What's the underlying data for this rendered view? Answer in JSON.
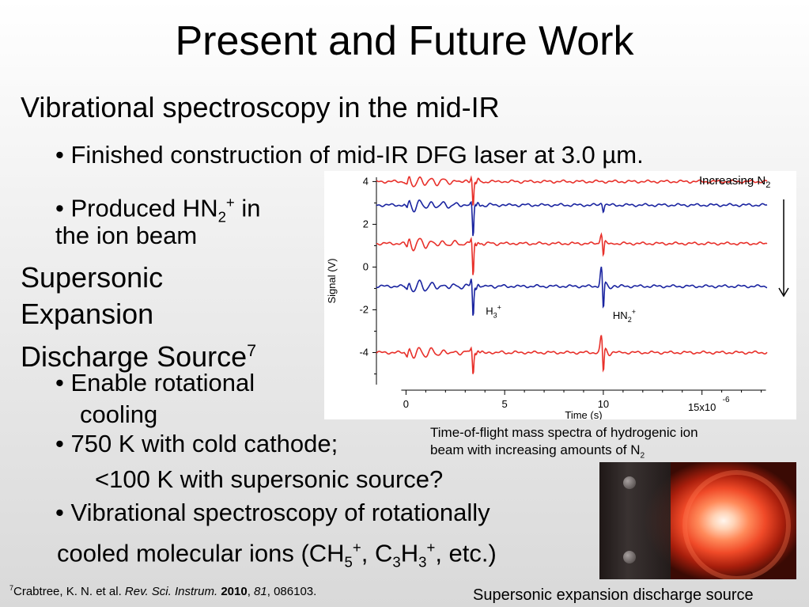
{
  "slide": {
    "title": "Present and Future Work",
    "section1": "Vibrational spectroscopy in the mid-IR",
    "bullet_laser": "Finished construction of mid-IR DFG laser at 3.0 µm.",
    "bullet_produced_pre": "Produced HN",
    "bullet_produced_sub": "2",
    "bullet_produced_sup": "+",
    "bullet_produced_post": " in",
    "bullet_produced_line2": "the ion beam",
    "section2_line1": "Supersonic",
    "section2_line2": "Expansion",
    "section2_line3": "Discharge Source",
    "section2_sup": "7",
    "bullet_enable_line1": "Enable rotational",
    "bullet_enable_line2": "cooling",
    "bullet_750_line1": "750 K with cold cathode;",
    "bullet_750_line2": "<100 K with supersonic source?",
    "bullet_vib_line1": "Vibrational spectroscopy of rotationally",
    "bullet_vib_line2_a": "cooled molecular ions (CH",
    "bullet_vib_line2_b": "5",
    "bullet_vib_line2_c": "+",
    "bullet_vib_line2_d": ", C",
    "bullet_vib_line2_e": "3",
    "bullet_vib_line2_f": "H",
    "bullet_vib_line2_g": "3",
    "bullet_vib_line2_h": "+",
    "bullet_vib_line2_i": ", etc.)",
    "bullet_char": "•"
  },
  "caption": {
    "line1": "Time-of-flight mass spectra of hydrogenic ion",
    "line2_pre": "beam with increasing amounts of N",
    "line2_sub": "2"
  },
  "footnote": {
    "sup": "7",
    "authors": "Crabtree, K. N. et al. ",
    "journal": "Rev. Sci. Instrum.",
    "year": "2010",
    "comma": ", ",
    "volume": "81",
    "pages": ", 086103."
  },
  "photo_caption": "Supersonic expansion discharge  source",
  "colors": {
    "red_trace": "#e8302a",
    "blue_trace": "#1a24a0",
    "axis": "#000000"
  },
  "chart_data": {
    "type": "line",
    "ylabel": "Signal (V)",
    "xlabel": "Time (s)",
    "x_scale_label": "15x10",
    "x_scale_exp": "-6",
    "xlim": [
      -1.5,
      18.5
    ],
    "ylim": [
      -5.5,
      4.2
    ],
    "x_ticks": [
      0,
      5,
      10
    ],
    "x_tick_labels": [
      "0",
      "5",
      "10"
    ],
    "y_ticks": [
      4,
      2,
      0,
      -2,
      -4
    ],
    "y_tick_labels": [
      "4",
      "2",
      "0",
      "-2",
      "-4"
    ],
    "legend_note": "Increasing N",
    "legend_note_sub": "2",
    "peak_labels": [
      {
        "text": "H",
        "sub": "3",
        "sup": "+",
        "x": 3.4,
        "y": -2.0
      },
      {
        "text": "HN",
        "sub": "2",
        "sup": "+",
        "x": 10.0,
        "y": -2.2
      }
    ],
    "series": [
      {
        "color": "red",
        "baseline": 4.0,
        "h3_peak": [
          1.2,
          0.3
        ],
        "hn2_peak": [
          0.0,
          0.0
        ]
      },
      {
        "color": "blue",
        "baseline": 2.9,
        "h3_peak": [
          1.5,
          0.2
        ],
        "hn2_peak": [
          0.3,
          0.1
        ]
      },
      {
        "color": "red",
        "baseline": 1.1,
        "h3_peak": [
          1.6,
          0.3
        ],
        "hn2_peak": [
          0.7,
          0.5
        ]
      },
      {
        "color": "blue",
        "baseline": -0.9,
        "h3_peak": [
          1.5,
          0.4
        ],
        "hn2_peak": [
          1.3,
          0.9
        ]
      },
      {
        "color": "red",
        "baseline": -4.0,
        "h3_peak": [
          1.0,
          0.3
        ],
        "hn2_peak": [
          1.1,
          0.8
        ]
      }
    ]
  }
}
